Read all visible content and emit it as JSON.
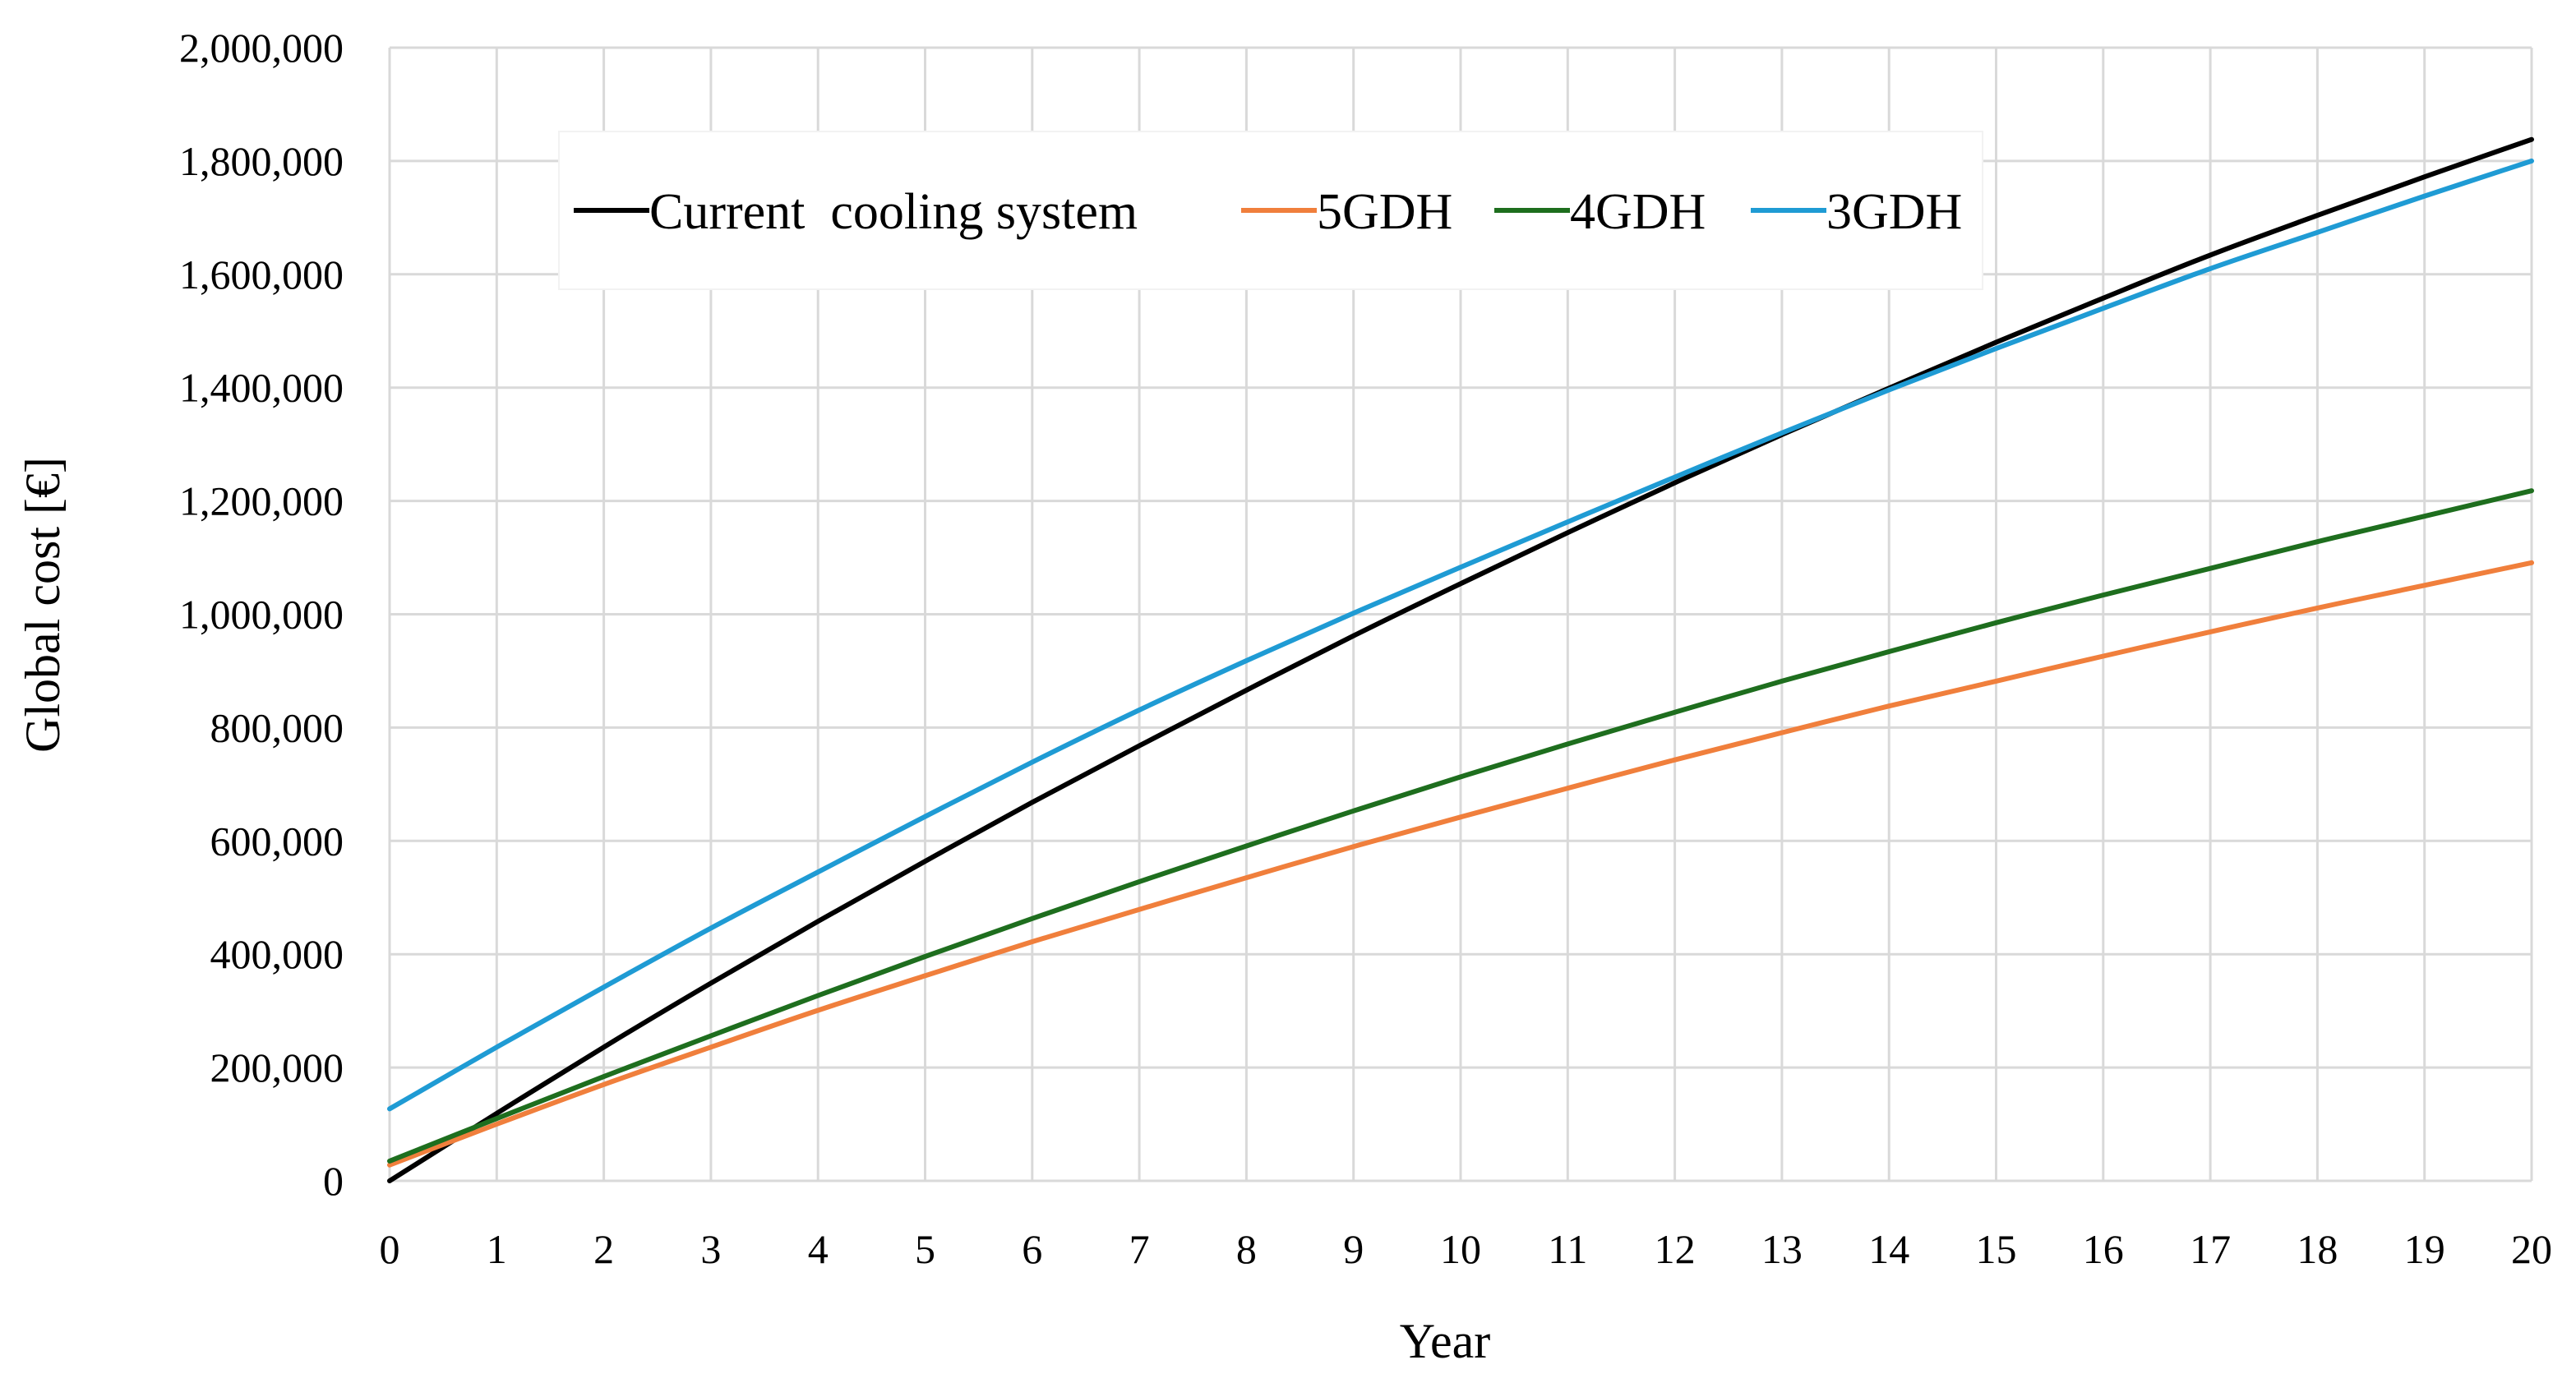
{
  "chart_data": {
    "type": "line",
    "title": "",
    "xlabel": "Year",
    "ylabel": "Global cost [€]",
    "xlim": [
      0,
      20
    ],
    "ylim": [
      0,
      2000000
    ],
    "grid": true,
    "legend_position": "top",
    "x": [
      0,
      1,
      2,
      3,
      4,
      5,
      6,
      7,
      8,
      9,
      10,
      11,
      12,
      13,
      14,
      15,
      16,
      17,
      18,
      19,
      20
    ],
    "x_tick_labels": [
      "0",
      "1",
      "2",
      "3",
      "4",
      "5",
      "6",
      "7",
      "8",
      "9",
      "10",
      "11",
      "12",
      "13",
      "14",
      "15",
      "16",
      "17",
      "18",
      "19",
      "20"
    ],
    "y_ticks": [
      0,
      200000,
      400000,
      600000,
      800000,
      1000000,
      1200000,
      1400000,
      1600000,
      1800000,
      2000000
    ],
    "y_tick_labels": [
      "0",
      "200,000",
      "400,000",
      "600,000",
      "800,000",
      "1,000,000",
      "1,200,000",
      "1,400,000",
      "1,600,000",
      "1,800,000",
      "2,000,000"
    ],
    "series": [
      {
        "name": "Current  cooling system",
        "color": "#000000",
        "values": [
          0,
          119000,
          236000,
          349000,
          458000,
          564000,
          668000,
          768000,
          866000,
          962000,
          1054000,
          1144000,
          1232000,
          1317000,
          1399000,
          1480000,
          1558000,
          1634000,
          1704000,
          1772000,
          1838000
        ]
      },
      {
        "name": "5GDH",
        "color": "#f07f3c",
        "values": [
          28000,
          100000,
          170000,
          236000,
          301000,
          362000,
          422000,
          479000,
          535000,
          590000,
          642000,
          693000,
          743000,
          791000,
          838000,
          882000,
          926000,
          969000,
          1011000,
          1051000,
          1091000
        ]
      },
      {
        "name": "4GDH",
        "color": "#1e6e1e",
        "values": [
          35000,
          110000,
          184000,
          256000,
          327000,
          396000,
          463000,
          528000,
          591000,
          653000,
          713000,
          771000,
          827000,
          882000,
          934000,
          985000,
          1034000,
          1081000,
          1128000,
          1173000,
          1218000
        ]
      },
      {
        "name": "3GDH",
        "color": "#1f9bd4",
        "values": [
          127000,
          236000,
          342000,
          446000,
          545000,
          643000,
          739000,
          831000,
          918000,
          1002000,
          1083000,
          1163000,
          1242000,
          1320000,
          1396000,
          1469000,
          1540000,
          1610000,
          1674000,
          1738000,
          1800000
        ]
      }
    ]
  }
}
